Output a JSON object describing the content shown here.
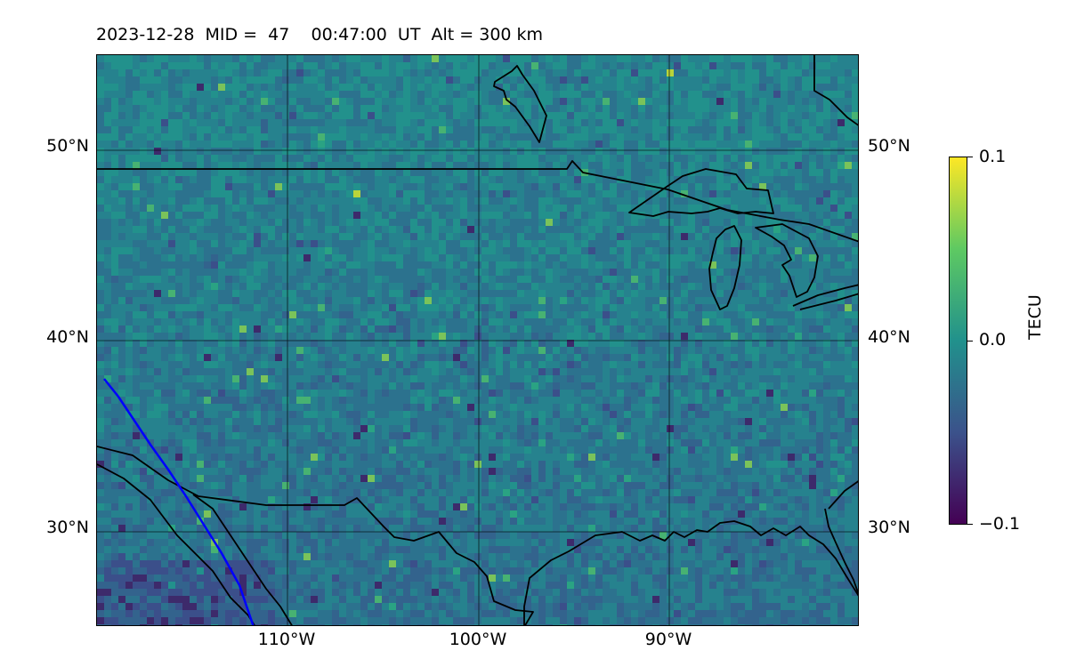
{
  "title": "2023-12-28  MID =  47    00:47:00  UT  Alt = 300 km",
  "lat_labels": [
    "50°N",
    "40°N",
    "30°N"
  ],
  "lon_labels": [
    "110°W",
    "100°W",
    "90°W"
  ],
  "colorbar": {
    "label": "TECU",
    "ticks": [
      "0.1",
      "0.0",
      "−0.1"
    ],
    "min": -0.1,
    "max": 0.1,
    "colormap": "viridis",
    "colors": [
      "#440154",
      "#3b528b",
      "#21918c",
      "#5ec962",
      "#fde725"
    ]
  },
  "map": {
    "lon_range": [
      -120,
      -80
    ],
    "lat_range": [
      25,
      55
    ],
    "background_color": "#2a7a8c",
    "coastline_color": "#000000",
    "track_color": "#0000ff"
  }
}
